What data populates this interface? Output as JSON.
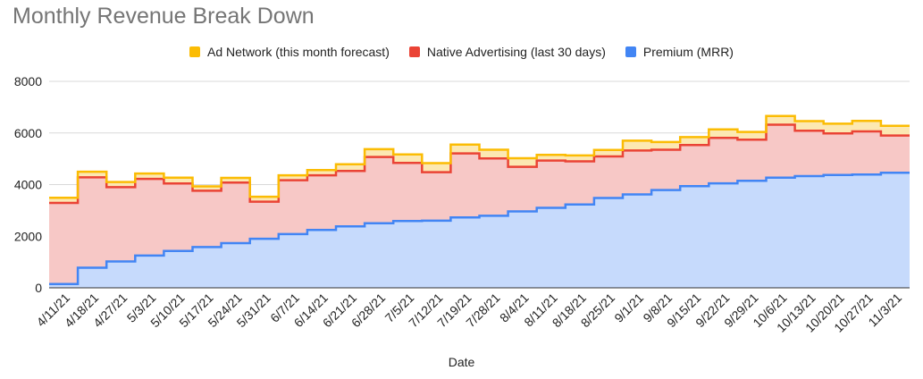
{
  "chart_data": {
    "type": "area",
    "title": "Monthly Revenue Break Down",
    "xlabel": "Date",
    "ylabel": "",
    "ylim": [
      0,
      8000
    ],
    "yticks": [
      0,
      2000,
      4000,
      6000,
      8000
    ],
    "stacked": true,
    "stepped": true,
    "grid": true,
    "legend_position": "top",
    "x": [
      "4/11/21",
      "4/18/21",
      "4/27/21",
      "5/3/21",
      "5/10/21",
      "5/17/21",
      "5/24/21",
      "5/31/21",
      "6/7/21",
      "6/14/21",
      "6/21/21",
      "6/28/21",
      "7/5/21",
      "7/12/21",
      "7/19/21",
      "7/28/21",
      "8/4/21",
      "8/11/21",
      "8/18/21",
      "8/25/21",
      "9/1/21",
      "9/8/21",
      "9/15/21",
      "9/22/21",
      "9/29/21",
      "10/6/21",
      "10/13/21",
      "10/20/21",
      "10/27/21",
      "11/3/21"
    ],
    "series": [
      {
        "name": "Premium (MRR)",
        "color": "#4285f4",
        "fill": "#c6dafc",
        "values": [
          150,
          780,
          1020,
          1250,
          1430,
          1580,
          1730,
          1900,
          2080,
          2240,
          2380,
          2500,
          2590,
          2600,
          2730,
          2790,
          2960,
          3100,
          3230,
          3480,
          3620,
          3790,
          3940,
          4050,
          4150,
          4270,
          4330,
          4370,
          4390,
          4460
        ]
      },
      {
        "name": "Native Advertising (last 30 days)",
        "color": "#ea4335",
        "fill": "#f7c8c6",
        "values": [
          3140,
          3500,
          2880,
          2970,
          2610,
          2180,
          2350,
          1440,
          2090,
          2120,
          2150,
          2570,
          2250,
          1880,
          2480,
          2220,
          1730,
          1830,
          1670,
          1610,
          1700,
          1560,
          1590,
          1760,
          1590,
          2050,
          1760,
          1610,
          1670,
          1440
        ]
      },
      {
        "name": "Ad Network (this month forecast)",
        "color": "#fbbc04",
        "fill": "#fce8b2",
        "values": [
          200,
          220,
          200,
          210,
          230,
          170,
          180,
          190,
          190,
          200,
          260,
          300,
          330,
          350,
          340,
          340,
          330,
          220,
          230,
          250,
          380,
          300,
          310,
          330,
          300,
          340,
          370,
          380,
          410,
          380
        ]
      }
    ],
    "legend_order": [
      "Ad Network (this month forecast)",
      "Native Advertising (last 30 days)",
      "Premium (MRR)"
    ]
  }
}
